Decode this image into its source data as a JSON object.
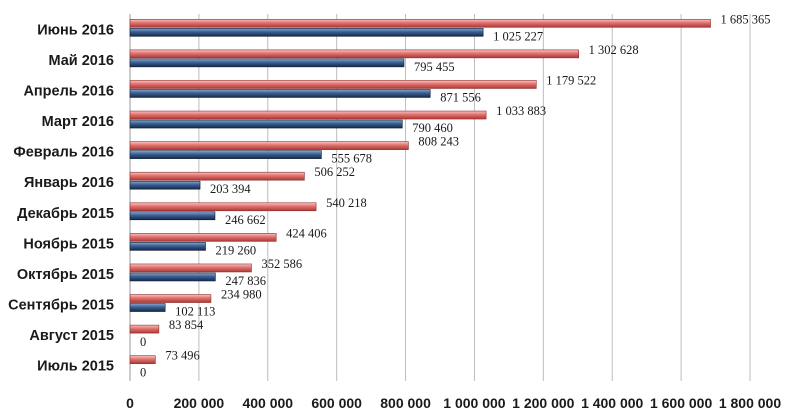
{
  "chart_data": {
    "type": "bar",
    "orientation": "horizontal",
    "categories": [
      "Июнь 2016",
      "Май 2016",
      "Апрель 2016",
      "Март 2016",
      "Февраль 2016",
      "Январь 2016",
      "Декабрь 2015",
      "Ноябрь 2015",
      "Октябрь 2015",
      "Сентябрь 2015",
      "Август 2015",
      "Июль 2015"
    ],
    "series": [
      {
        "color": "#c0504d",
        "values": [
          1685365,
          1302628,
          1179522,
          1033883,
          808243,
          506252,
          540218,
          424406,
          352586,
          234980,
          83854,
          73496
        ],
        "labels": [
          "1 685 365",
          "1 302 628",
          "1 179 522",
          "1 033 883",
          "808 243",
          "506 252",
          "540 218",
          "424 406",
          "352 586",
          "234 980",
          "83 854",
          "73 496"
        ]
      },
      {
        "color": "#1f3b63",
        "values": [
          1025227,
          795455,
          871556,
          790460,
          555678,
          203394,
          246662,
          219260,
          247836,
          102113,
          0,
          0
        ],
        "labels": [
          "1 025 227",
          "795 455",
          "871 556",
          "790 460",
          "555 678",
          "203 394",
          "246 662",
          "219 260",
          "247 836",
          "102 113",
          "0",
          "0"
        ]
      }
    ],
    "x_ticks": [
      "0",
      "200 000",
      "400 000",
      "600 000",
      "800 000",
      "1 000 000",
      "1 200 000",
      "1 400 000",
      "1 600 000",
      "1 800 000"
    ],
    "xlim": [
      0,
      1800000
    ],
    "title": "",
    "xlabel": "",
    "ylabel": "",
    "grid": true,
    "legend": "none"
  }
}
